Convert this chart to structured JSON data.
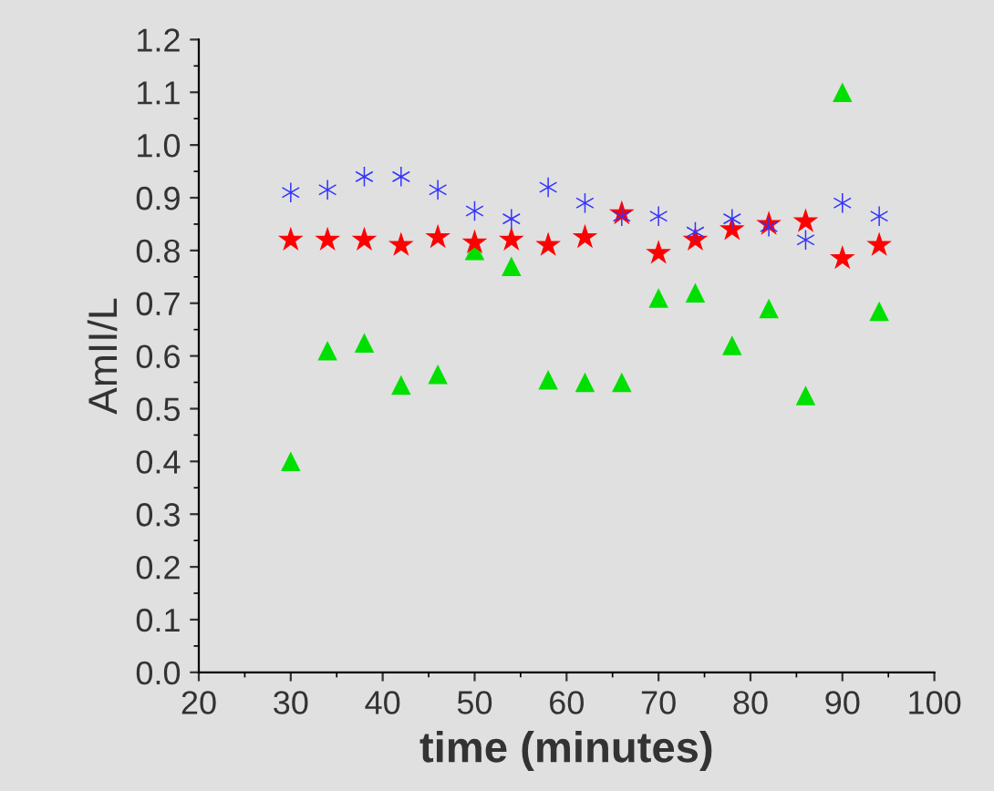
{
  "chart_data": {
    "type": "scatter",
    "xlabel": "time (minutes)",
    "ylabel": "AmII/L",
    "xlim": [
      20,
      100
    ],
    "xticks": [
      20,
      30,
      40,
      50,
      60,
      70,
      80,
      90,
      100
    ],
    "ylim": [
      0,
      1.2
    ],
    "yticks": [
      {
        "value": 0,
        "label": "0.0"
      },
      {
        "value": 0.1,
        "label": "0.1"
      },
      {
        "value": 0.2,
        "label": "0.2"
      },
      {
        "value": 0.3,
        "label": "0.3"
      },
      {
        "value": 0.4,
        "label": "0.4"
      },
      {
        "value": 0.5,
        "label": "0.5"
      },
      {
        "value": 0.6,
        "label": "0.6"
      },
      {
        "value": 0.7,
        "label": "0.7"
      },
      {
        "value": 0.8,
        "label": "0.8"
      },
      {
        "value": 0.9,
        "label": "0.9"
      },
      {
        "value": 1.0,
        "label": "1.0"
      },
      {
        "value": 1.1,
        "label": "1.1"
      },
      {
        "value": 1.2,
        "label": "1.2"
      }
    ],
    "grid": false,
    "legend": false,
    "x": [
      30,
      34,
      38,
      42,
      46,
      50,
      54,
      58,
      62,
      66,
      70,
      74,
      78,
      82,
      86,
      90,
      94
    ],
    "series": [
      {
        "color": "#3333ff",
        "marker": "cross",
        "values": [
          0.91,
          0.915,
          0.94,
          0.94,
          0.915,
          0.875,
          0.86,
          0.92,
          0.89,
          0.865,
          0.865,
          0.835,
          0.86,
          0.845,
          0.82,
          0.89,
          0.865
        ]
      },
      {
        "color": "#ff0000",
        "marker": "star",
        "values": [
          0.82,
          0.82,
          0.82,
          0.81,
          0.825,
          0.815,
          0.82,
          0.81,
          0.825,
          0.87,
          0.795,
          0.82,
          0.84,
          0.85,
          0.855,
          0.785,
          0.81
        ]
      },
      {
        "color": "#00e000",
        "marker": "triangle",
        "values": [
          0.4,
          0.61,
          0.625,
          0.545,
          0.565,
          0.8,
          0.77,
          0.555,
          0.55,
          0.55,
          0.71,
          0.72,
          0.62,
          0.69,
          0.525,
          1.1,
          0.685
        ]
      }
    ]
  }
}
